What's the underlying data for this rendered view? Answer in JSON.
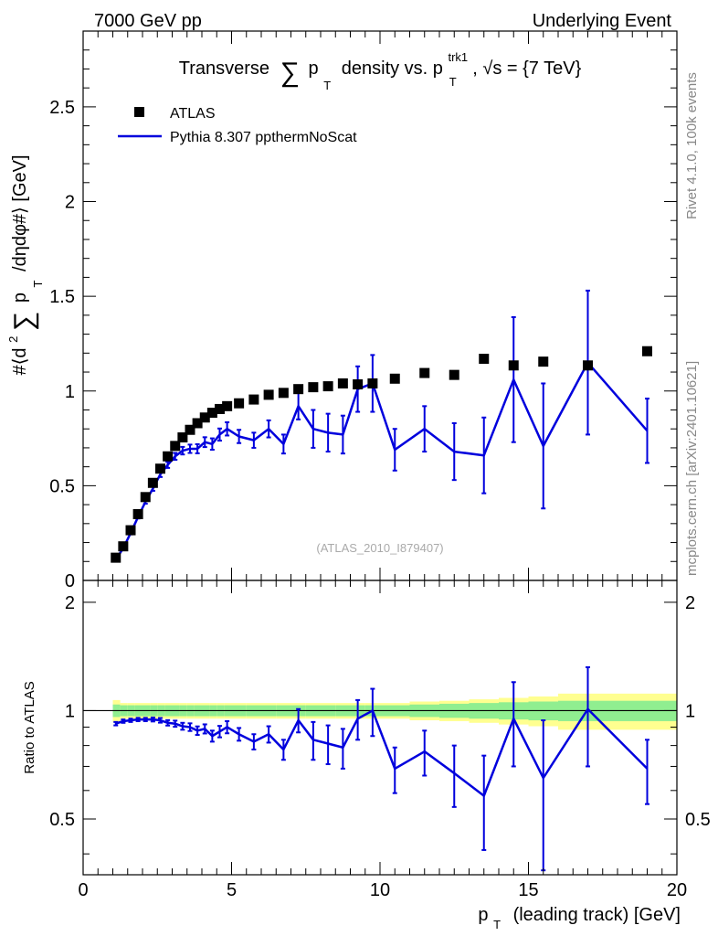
{
  "header": {
    "left": "7000 GeV pp",
    "right": "Underlying Event"
  },
  "side_labels": {
    "rivet": "Rivet 4.1.0,  100k events",
    "mcplots": "mcplots.cern.ch [arXiv:2401.10621]"
  },
  "chart_data": [
    {
      "type": "scatter",
      "panel": "main",
      "title": "Transverse ∑ p_T density vs. p_T^trk1, √s = {7 TeV}",
      "title_parts": {
        "prefix": "Transverse",
        "sum": "∑",
        "p": "p",
        "sub_t": "T",
        "mid": "density vs. p",
        "sup": "trk1",
        "sub_t2": "T",
        "suffix": ", √s = {7 TeV}"
      },
      "ylabel": "#⟨d² ∑ p_T /dηdφ#⟩ [GeV]",
      "ylabel_parts": {
        "a": "#⟨d",
        "sup": "2",
        "sum": "∑",
        "p": "p",
        "sub": "T",
        "b": "/dηdφ#⟩ [GeV]"
      },
      "xlim": [
        0,
        20
      ],
      "ylim": [
        0,
        2.9
      ],
      "y_ticks": [
        0.5,
        1,
        1.5,
        2,
        2.5
      ],
      "y_tick_labels": [
        "0.5",
        "1",
        "1.5",
        "2",
        "2.5"
      ],
      "bottom_tick_label": "0",
      "watermark": "(ATLAS_2010_I879407)",
      "legend": [
        "ATLAS",
        "Pythia 8.307 ppthermNoScat"
      ],
      "legend_position": "top-left",
      "series": [
        {
          "name": "ATLAS",
          "style": "square-markers",
          "color": "#000000",
          "x": [
            1.1,
            1.35,
            1.6,
            1.85,
            2.1,
            2.35,
            2.6,
            2.85,
            3.1,
            3.35,
            3.6,
            3.85,
            4.1,
            4.35,
            4.6,
            4.85,
            5.25,
            5.75,
            6.25,
            6.75,
            7.25,
            7.75,
            8.25,
            8.75,
            9.25,
            9.75,
            10.5,
            11.5,
            12.5,
            13.5,
            14.5,
            15.5,
            17.0,
            19.0
          ],
          "y": [
            0.12,
            0.18,
            0.265,
            0.35,
            0.44,
            0.515,
            0.59,
            0.655,
            0.71,
            0.755,
            0.795,
            0.83,
            0.86,
            0.885,
            0.905,
            0.92,
            0.935,
            0.955,
            0.98,
            0.99,
            1.01,
            1.02,
            1.025,
            1.04,
            1.035,
            1.04,
            1.065,
            1.095,
            1.085,
            1.17,
            1.135,
            1.155,
            1.135,
            1.21
          ]
        },
        {
          "name": "Pythia 8.307 ppthermNoScat",
          "style": "line-with-errorbars",
          "color": "#0000dd",
          "x": [
            1.1,
            1.35,
            1.6,
            1.85,
            2.1,
            2.35,
            2.6,
            2.85,
            3.1,
            3.35,
            3.6,
            3.85,
            4.1,
            4.35,
            4.6,
            4.85,
            5.25,
            5.75,
            6.25,
            6.75,
            7.25,
            7.75,
            8.25,
            8.75,
            9.25,
            9.75,
            10.5,
            11.5,
            12.5,
            13.5,
            14.5,
            15.5,
            17.0,
            19.0
          ],
          "y": [
            0.11,
            0.17,
            0.25,
            0.335,
            0.415,
            0.485,
            0.56,
            0.61,
            0.655,
            0.685,
            0.695,
            0.695,
            0.73,
            0.72,
            0.77,
            0.8,
            0.76,
            0.74,
            0.8,
            0.72,
            0.92,
            0.8,
            0.78,
            0.77,
            1.01,
            1.04,
            0.69,
            0.8,
            0.68,
            0.66,
            1.06,
            0.71,
            1.15,
            0.79
          ],
          "err": [
            0.005,
            0.006,
            0.007,
            0.008,
            0.01,
            0.012,
            0.014,
            0.016,
            0.018,
            0.02,
            0.022,
            0.024,
            0.026,
            0.03,
            0.032,
            0.035,
            0.035,
            0.04,
            0.045,
            0.05,
            0.07,
            0.1,
            0.1,
            0.1,
            0.12,
            0.15,
            0.11,
            0.12,
            0.15,
            0.2,
            0.33,
            0.33,
            0.38,
            0.17
          ]
        }
      ]
    },
    {
      "type": "line",
      "panel": "ratio",
      "ylabel": "Ratio to ATLAS",
      "xlabel": "p_T (leading track) [GeV]",
      "xlabel_parts": {
        "p": "p",
        "sub": "T",
        "rest": "(leading track) [GeV]"
      },
      "xlim": [
        0,
        20
      ],
      "ylim": [
        0.35,
        2.3
      ],
      "x_ticks": [
        0,
        5,
        10,
        15,
        20
      ],
      "x_tick_labels": [
        "0",
        "5",
        "10",
        "15",
        "20"
      ],
      "y_ticks": [
        0.5,
        1,
        2
      ],
      "y_tick_labels": [
        "0.5",
        "1",
        "2"
      ],
      "reference_line": 1,
      "bands": {
        "edges": [
          1.0,
          1.25,
          1.5,
          1.75,
          2.0,
          2.25,
          2.5,
          2.75,
          3.0,
          3.25,
          3.5,
          3.75,
          4.0,
          4.25,
          4.5,
          4.75,
          5.0,
          5.5,
          6.0,
          6.5,
          7.0,
          7.5,
          8.0,
          8.5,
          9.0,
          9.5,
          10.0,
          11.0,
          12.0,
          13.0,
          14.0,
          15.0,
          16.0,
          18.0,
          20.0
        ],
        "stat_color": "#90ee90",
        "total_color": "#ffff90",
        "stat_halfwidth": [
          0.04,
          0.035,
          0.035,
          0.035,
          0.035,
          0.035,
          0.035,
          0.035,
          0.035,
          0.035,
          0.035,
          0.035,
          0.035,
          0.035,
          0.035,
          0.035,
          0.035,
          0.035,
          0.035,
          0.035,
          0.035,
          0.035,
          0.035,
          0.035,
          0.035,
          0.035,
          0.035,
          0.04,
          0.045,
          0.05,
          0.055,
          0.06,
          0.065,
          0.065
        ],
        "total_halfwidth": [
          0.07,
          0.05,
          0.05,
          0.05,
          0.05,
          0.05,
          0.05,
          0.05,
          0.05,
          0.05,
          0.05,
          0.05,
          0.05,
          0.05,
          0.05,
          0.05,
          0.05,
          0.05,
          0.05,
          0.05,
          0.05,
          0.05,
          0.05,
          0.05,
          0.05,
          0.05,
          0.05,
          0.06,
          0.065,
          0.075,
          0.085,
          0.095,
          0.115,
          0.115
        ]
      },
      "series": [
        {
          "name": "Pythia 8.307 ppthermNoScat / ATLAS",
          "color": "#0000dd",
          "x": [
            1.1,
            1.35,
            1.6,
            1.85,
            2.1,
            2.35,
            2.6,
            2.85,
            3.1,
            3.35,
            3.6,
            3.85,
            4.1,
            4.35,
            4.6,
            4.85,
            5.25,
            5.75,
            6.25,
            6.75,
            7.25,
            7.75,
            8.25,
            8.75,
            9.25,
            9.75,
            10.5,
            11.5,
            12.5,
            13.5,
            14.5,
            15.5,
            17.0,
            19.0
          ],
          "y": [
            0.92,
            0.935,
            0.94,
            0.945,
            0.945,
            0.945,
            0.94,
            0.925,
            0.92,
            0.905,
            0.9,
            0.88,
            0.89,
            0.85,
            0.875,
            0.9,
            0.86,
            0.82,
            0.86,
            0.78,
            0.94,
            0.83,
            0.81,
            0.79,
            0.95,
            1.0,
            0.69,
            0.77,
            0.67,
            0.58,
            0.95,
            0.65,
            1.01,
            0.69
          ],
          "err": [
            0.01,
            0.01,
            0.01,
            0.01,
            0.01,
            0.012,
            0.014,
            0.016,
            0.018,
            0.02,
            0.022,
            0.024,
            0.026,
            0.03,
            0.032,
            0.035,
            0.035,
            0.04,
            0.045,
            0.05,
            0.07,
            0.1,
            0.1,
            0.1,
            0.12,
            0.15,
            0.1,
            0.11,
            0.13,
            0.17,
            0.25,
            0.29,
            0.31,
            0.14
          ]
        }
      ]
    }
  ]
}
